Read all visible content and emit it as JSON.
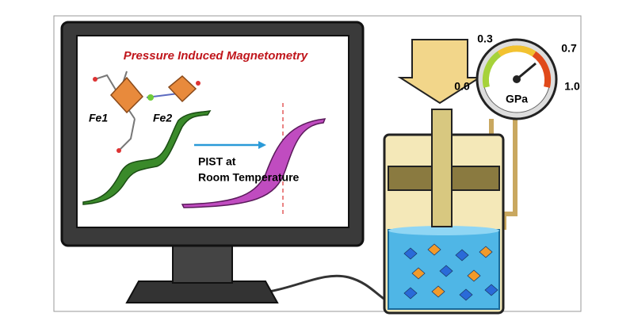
{
  "screen": {
    "title": "Pressure Induced Magnetometry",
    "atoms": [
      "Fe1",
      "Fe2"
    ],
    "arrow_label": [
      "PIST at",
      "Room Temperature"
    ]
  },
  "gauge": {
    "labels": {
      "low": "0.0",
      "mid_low": "0.3",
      "mid_high": "0.7",
      "high": "1.0"
    },
    "unit": "GPa"
  }
}
